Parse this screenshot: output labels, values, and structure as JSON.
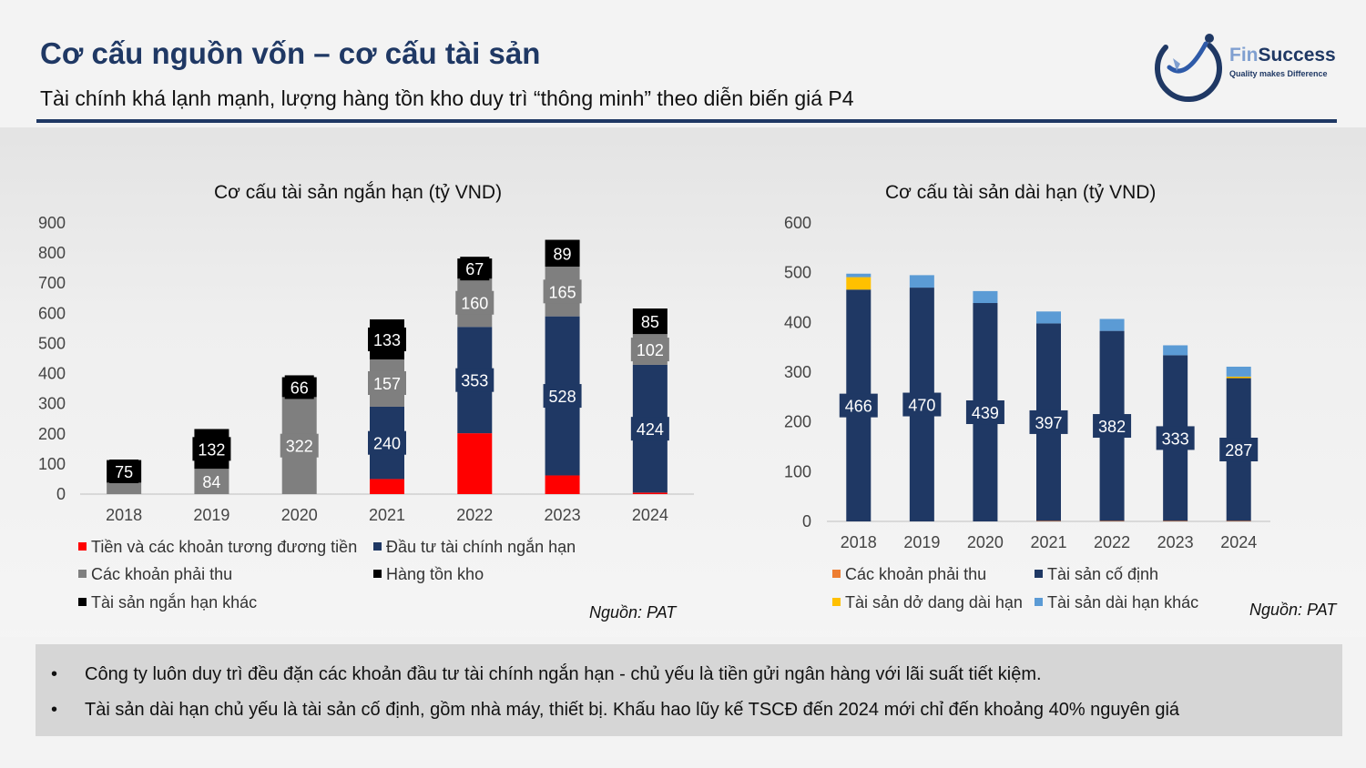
{
  "header": {
    "title": "Cơ cấu nguồn vốn – cơ cấu tài sản",
    "subtitle": "Tài chính khá lạnh mạnh, lượng hàng tồn kho duy trì “thông minh” theo diễn biến giá P4"
  },
  "logo": {
    "name_part1": "Fin",
    "name_part2": "Success",
    "tagline": "Quality makes Difference"
  },
  "chart_data": [
    {
      "type": "bar",
      "stacked": true,
      "title": "Cơ cấu tài sản ngắn hạn (tỷ VND)",
      "categories": [
        "2018",
        "2019",
        "2020",
        "2021",
        "2022",
        "2023",
        "2024"
      ],
      "ylim": [
        0,
        900
      ],
      "yticks": [
        0,
        100,
        200,
        300,
        400,
        500,
        600,
        700,
        800,
        900
      ],
      "grid": false,
      "legend_position": "bottom",
      "series": [
        {
          "name": "Tiền và các khoản tương đương tiền",
          "color": "#ff0000",
          "values": [
            0,
            0,
            0,
            50,
            202,
            62,
            5
          ]
        },
        {
          "name": "Đầu tư tài chính ngắn hạn",
          "color": "#1f3864",
          "values": [
            0,
            0,
            0,
            240,
            353,
            528,
            424
          ]
        },
        {
          "name": "Các khoản phải thu",
          "color": "#7f7f7f",
          "values": [
            38,
            84,
            322,
            157,
            160,
            165,
            102
          ]
        },
        {
          "name": "Hàng tồn kho",
          "color": "#000000",
          "values": [
            75,
            132,
            66,
            133,
            67,
            89,
            85
          ]
        },
        {
          "name": "Tài sản ngắn hạn khác",
          "color": "#000000",
          "values": [
            0,
            0,
            0,
            0,
            0,
            0,
            0
          ]
        }
      ],
      "labels": [
        {
          "category": "2018",
          "series": "Hàng tồn kho",
          "text": "75"
        },
        {
          "category": "2019",
          "series": "Hàng tồn kho",
          "text": "132"
        },
        {
          "category": "2019",
          "series": "Các khoản phải thu",
          "text": "84"
        },
        {
          "category": "2020",
          "series": "Hàng tồn kho",
          "text": "66"
        },
        {
          "category": "2020",
          "series": "Các khoản phải thu",
          "text": "322"
        },
        {
          "category": "2021",
          "series": "Hàng tồn kho",
          "text": "133"
        },
        {
          "category": "2021",
          "series": "Các khoản phải thu",
          "text": "157"
        },
        {
          "category": "2021",
          "series": "Đầu tư tài chính ngắn hạn",
          "text": "240"
        },
        {
          "category": "2022",
          "series": "Hàng tồn kho",
          "text": "67"
        },
        {
          "category": "2022",
          "series": "Các khoản phải thu",
          "text": "160"
        },
        {
          "category": "2022",
          "series": "Đầu tư tài chính ngắn hạn",
          "text": "353"
        },
        {
          "category": "2023",
          "series": "Hàng tồn kho",
          "text": "89"
        },
        {
          "category": "2023",
          "series": "Các khoản phải thu",
          "text": "165"
        },
        {
          "category": "2023",
          "series": "Đầu tư tài chính ngắn hạn",
          "text": "528"
        },
        {
          "category": "2024",
          "series": "Hàng tồn kho",
          "text": "85"
        },
        {
          "category": "2024",
          "series": "Các khoản phải thu",
          "text": "102"
        },
        {
          "category": "2024",
          "series": "Đầu tư tài chính ngắn hạn",
          "text": "424"
        }
      ],
      "source": "Nguồn: PAT"
    },
    {
      "type": "bar",
      "stacked": true,
      "title": "Cơ cấu tài sản dài hạn (tỷ VND)",
      "categories": [
        "2018",
        "2019",
        "2020",
        "2021",
        "2022",
        "2023",
        "2024"
      ],
      "ylim": [
        0,
        600
      ],
      "yticks": [
        0,
        100,
        200,
        300,
        400,
        500,
        600
      ],
      "grid": false,
      "legend_position": "bottom",
      "series": [
        {
          "name": "Các khoản phải thu",
          "color": "#ed7d31",
          "values": [
            0,
            0,
            0,
            1,
            1,
            1,
            1
          ]
        },
        {
          "name": "Tài sản cố định",
          "color": "#1f3864",
          "values": [
            466,
            470,
            439,
            397,
            382,
            333,
            287
          ]
        },
        {
          "name": "Tài sản dở dang dài hạn",
          "color": "#ffc000",
          "values": [
            25,
            0,
            0,
            0,
            0,
            0,
            3
          ]
        },
        {
          "name": "Tài sản dài hạn khác",
          "color": "#5b9bd5",
          "values": [
            7,
            25,
            24,
            24,
            24,
            20,
            20
          ]
        }
      ],
      "labels": [
        {
          "category": "2018",
          "series": "Tài sản cố định",
          "text": "466"
        },
        {
          "category": "2019",
          "series": "Tài sản cố định",
          "text": "470"
        },
        {
          "category": "2020",
          "series": "Tài sản cố định",
          "text": "439"
        },
        {
          "category": "2021",
          "series": "Tài sản cố định",
          "text": "397"
        },
        {
          "category": "2022",
          "series": "Tài sản cố định",
          "text": "382"
        },
        {
          "category": "2023",
          "series": "Tài sản cố định",
          "text": "333"
        },
        {
          "category": "2024",
          "series": "Tài sản cố định",
          "text": "287"
        }
      ],
      "source": "Nguồn: PAT"
    }
  ],
  "bullets": [
    "Công ty luôn duy trì đều đặn các khoản đầu tư tài chính ngắn hạn - chủ yếu là tiền gửi ngân hàng với lãi suất tiết kiệm.",
    "Tài sản dài hạn chủ yếu là tài sản cố định, gồm nhà máy,  thiết bị. Khấu hao lũy kế TSCĐ đến 2024 mới chỉ đến khoảng 40% nguyên giá"
  ],
  "bullet_symbol": "•"
}
